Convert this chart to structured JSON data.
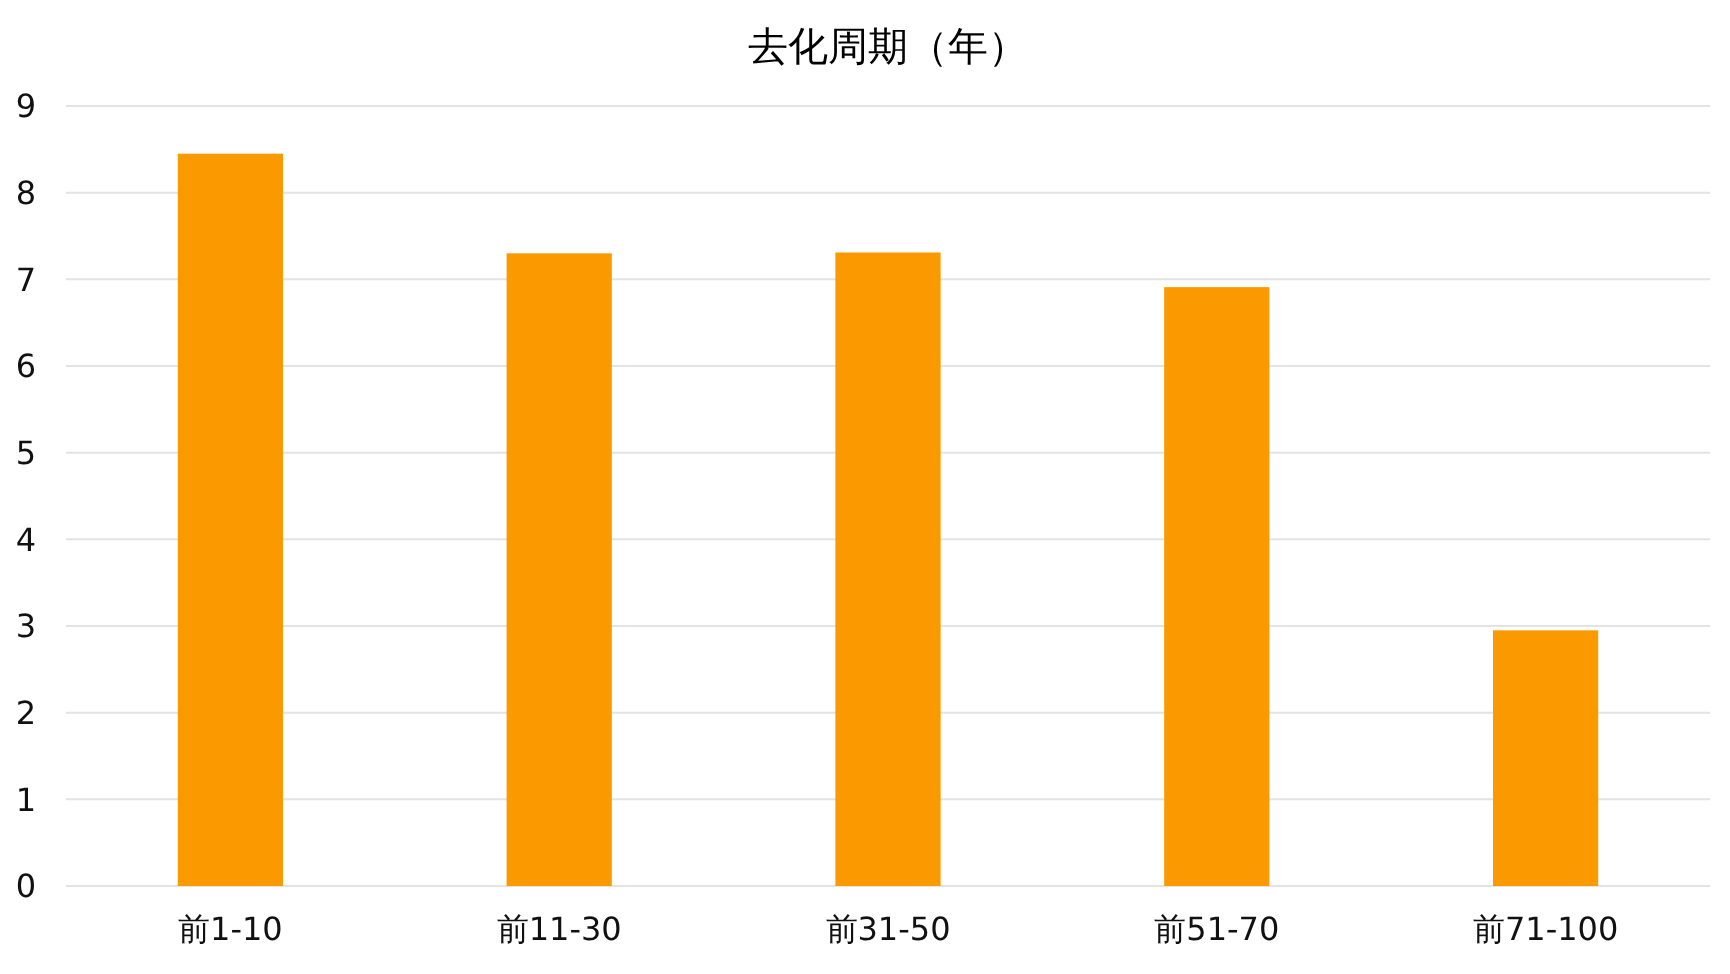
{
  "chart_data": {
    "type": "bar",
    "title": "去化周期（年）",
    "categories": [
      "前1-10",
      "前11-30",
      "前31-50",
      "前51-70",
      "前71-100"
    ],
    "values": [
      8.45,
      7.3,
      7.31,
      6.91,
      2.95
    ],
    "color": "#fa9a00",
    "ylim": [
      0,
      9
    ],
    "yticks": [
      0,
      1,
      2,
      3,
      4,
      5,
      6,
      7,
      8,
      9
    ],
    "grid": "y"
  }
}
